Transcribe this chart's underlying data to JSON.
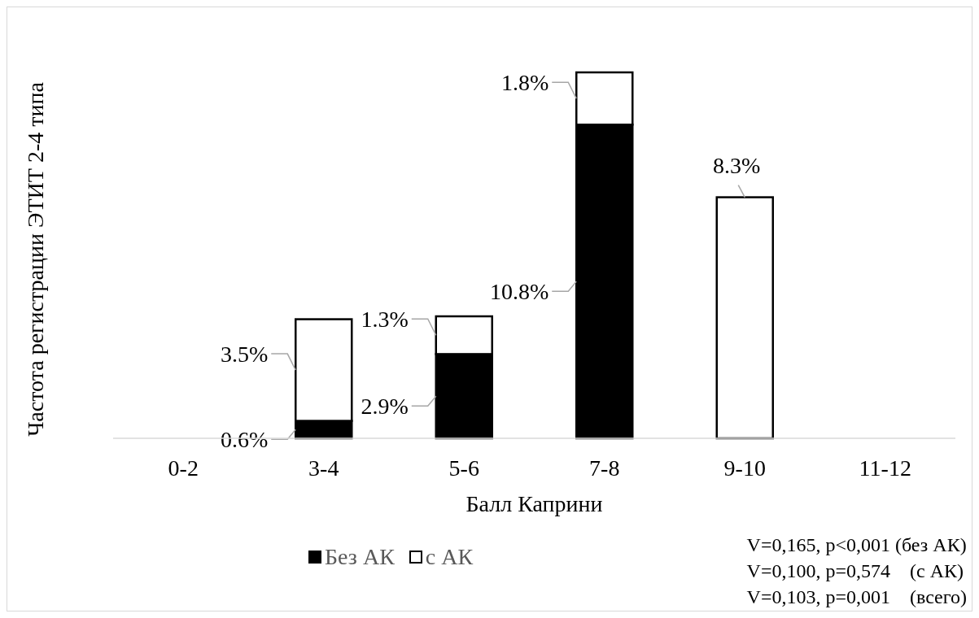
{
  "chart_data": {
    "type": "bar",
    "stacked": true,
    "xlabel": "Балл Каприни",
    "ylabel": "Частота регистрации ЭТИТ 2-4 типа",
    "categories": [
      "0-2",
      "3-4",
      "5-6",
      "7-8",
      "9-10",
      "11-12"
    ],
    "series": [
      {
        "name": "Без АК",
        "color": "#000000",
        "values": [
          null,
          0.6,
          2.9,
          10.8,
          null,
          null
        ],
        "value_labels": [
          null,
          "0.6%",
          "2.9%",
          "10.8%",
          null,
          null
        ]
      },
      {
        "name": "с АК",
        "color": "#ffffff",
        "values": [
          null,
          3.5,
          1.3,
          1.8,
          8.3,
          null
        ],
        "value_labels": [
          null,
          "3.5%",
          "1.3%",
          "1.8%",
          "8.3%",
          null
        ]
      }
    ],
    "legend": "bottom",
    "grid": false,
    "annotations": [
      "V=0,165, p<0,001 (без АК)",
      "V=0,100, p=0,574    (с АК)",
      "V=0,103, p=0,001    (всего)"
    ]
  }
}
